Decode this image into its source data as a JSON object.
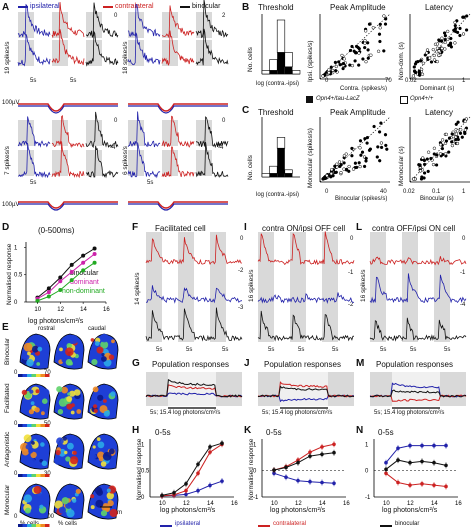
{
  "colors": {
    "ipsi": "#2222aa",
    "contra": "#cc2222",
    "binoc": "#111111",
    "green": "#22aa22",
    "magenta": "#cc22aa",
    "grey_band": "#d9d9d9"
  },
  "panelA": {
    "legend": {
      "ipsilateral": "ipsilateral",
      "contralateral": "contralateral",
      "binocular": "binocular"
    },
    "top_ylabel": "19 spikes/s",
    "top_ylabel2": "18 spikes/s",
    "bottom_ylabel": "7 spikes/s",
    "bottom_ylabel2": "6 spikes/s",
    "scale_v": "100µV",
    "scale_t": "5s",
    "numbers_top": [
      "0",
      "2"
    ],
    "numbers_bottom": [
      "0",
      "0",
      "-4",
      "-4"
    ]
  },
  "panelB": {
    "threshold_title": "Threshold",
    "threshold_xlabel": "log (contra.-ipsi)",
    "threshold_ylabel": "No. cells",
    "threshold_yticks": [
      "0",
      "5",
      "10",
      "15"
    ],
    "threshold_xticks": [
      "-2",
      "-1",
      "0",
      "1",
      "2"
    ],
    "peak_title": "Peak Amplitude",
    "peak_xlabel": "Contra. (spikes/s)",
    "peak_ylabel": "Ipsi. (spikes/s)",
    "peak_ticks": [
      "0",
      "70"
    ],
    "latency_title": "Latency",
    "latency_xlabel": "Dominant (s)",
    "latency_ylabel": "Non-dom. (s)",
    "latency_ticks": [
      "0.02",
      "1"
    ]
  },
  "legend_mid": {
    "left": "Opn4+/tau-LacZ",
    "right": "Opn4+/+"
  },
  "panelC": {
    "threshold_title": "Threshold",
    "threshold_xlabel": "log (contra.-ipsi)",
    "threshold_ylabel": "No. cells",
    "threshold_yticks": [
      "0",
      "5",
      "10"
    ],
    "threshold_xticks": [
      "-2",
      "-1",
      "0",
      "1",
      "2"
    ],
    "peak_title": "Peak Amplitude",
    "peak_xlabel": "Binocular (spikes/s)",
    "peak_ylabel": "Monocular (spikes/s)",
    "peak_ticks": [
      "0",
      "40"
    ],
    "latency_title": "Latency",
    "latency_xlabel": "Binocular (s)",
    "latency_ylabel": "Monocular (s)",
    "latency_ticks": [
      "0.02",
      "0.1",
      "1"
    ]
  },
  "panelD": {
    "title": "(0-500ms)",
    "ylabel": "Normalised response",
    "xlabel": "log photons/cm²/s",
    "xticks": [
      "10",
      "12",
      "14",
      "16"
    ],
    "yticks": [
      "0",
      "0.5",
      "1"
    ],
    "legend": [
      "binocular",
      "dominant",
      "non-dominant"
    ]
  },
  "panelE": {
    "rows": [
      "Binocular",
      "Facilitated",
      "Antagonistic",
      "Monocular"
    ],
    "rostral": "rostral",
    "caudal": "caudal",
    "scale_max_70": "70",
    "scale_max_50": "50",
    "scale_max_30": "30",
    "scale_max_100": "100",
    "scale_zero": "0",
    "xlabel": "% cells",
    "scalebar": "200 µm"
  },
  "panelF": {
    "title": "Facilitated cell",
    "ylabel": "14 spikes/s",
    "nums": [
      "0",
      "-2",
      "-3"
    ],
    "time": "5s"
  },
  "panelI": {
    "title": "contra ON/ipsi OFF cell",
    "ylabel": "16 spikes/s",
    "nums": [
      "0",
      "-1",
      "-2"
    ],
    "time": "5s"
  },
  "panelL": {
    "title": "contra OFF/ipsi ON cell",
    "ylabel": "16 spikes/s",
    "nums": [
      "0",
      "-1",
      "-4"
    ],
    "time": "5s"
  },
  "panelG": {
    "title": "Population responses",
    "caption": "5s; 15.4 log photons/cm²/s"
  },
  "panelJ": {
    "title": "Population responses",
    "caption": "5s; 15.4 log photons/cm²/s"
  },
  "panelM": {
    "title": "Population responses",
    "caption": "5s; 15.4 log photons/cm²/s"
  },
  "panelH": {
    "title": "0-5s",
    "ylabel": "Normalised response",
    "xlabel": "log photons/cm²/s",
    "xticks": [
      "10",
      "12",
      "14",
      "16"
    ],
    "yticks": [
      "0",
      "0.5",
      "1"
    ]
  },
  "panelK": {
    "title": "0-5s",
    "ylabel": "Normalised response",
    "xlabel": "log photons/cm²/s",
    "xticks": [
      "10",
      "12",
      "14",
      "16"
    ],
    "yticks": [
      "-1",
      "0",
      "1"
    ]
  },
  "panelN": {
    "title": "0-5s",
    "xlabel": "log photons/cm²/s",
    "xticks": [
      "10",
      "12",
      "14",
      "16"
    ],
    "yticks": [
      "-1",
      "0",
      "1"
    ]
  },
  "bottom_legend": {
    "ipsi": "ipsilateral",
    "contra": "contralateral",
    "binoc": "binocular"
  },
  "chart_data": [
    {
      "type": "line",
      "title": "(0-500ms)",
      "xlabel": "log photons/cm²/s",
      "ylabel": "Normalised response",
      "x": [
        10,
        11,
        12,
        13,
        14,
        15
      ],
      "series": [
        {
          "name": "binocular",
          "values": [
            0.08,
            0.25,
            0.45,
            0.68,
            0.85,
            0.98
          ]
        },
        {
          "name": "dominant",
          "values": [
            0.06,
            0.18,
            0.38,
            0.55,
            0.72,
            0.88
          ]
        },
        {
          "name": "non-dominant",
          "values": [
            0.02,
            0.1,
            0.22,
            0.4,
            0.58,
            0.72
          ]
        }
      ],
      "ylim": [
        0,
        1.1
      ]
    },
    {
      "type": "line",
      "title": "0-5s",
      "xlabel": "log photons/cm²/s",
      "ylabel": "Normalised response",
      "x": [
        10,
        11,
        12,
        13,
        14,
        15
      ],
      "series": [
        {
          "name": "ipsilateral",
          "values": [
            0.02,
            0.03,
            0.05,
            0.12,
            0.22,
            0.3
          ]
        },
        {
          "name": "contralateral",
          "values": [
            0.02,
            0.04,
            0.12,
            0.45,
            0.85,
            1.0
          ]
        },
        {
          "name": "binocular",
          "values": [
            0.03,
            0.08,
            0.25,
            0.62,
            0.95,
            1.02
          ]
        }
      ],
      "ylim": [
        0,
        1.1
      ]
    },
    {
      "type": "line",
      "title": "0-5s",
      "xlabel": "log photons/cm²/s",
      "ylabel": "Normalised response",
      "x": [
        10,
        11,
        12,
        13,
        14,
        15
      ],
      "series": [
        {
          "name": "ipsilateral",
          "values": [
            -0.1,
            -0.25,
            -0.38,
            -0.42,
            -0.45,
            -0.48
          ]
        },
        {
          "name": "contralateral",
          "values": [
            0.02,
            0.15,
            0.4,
            0.7,
            0.9,
            1.0
          ]
        },
        {
          "name": "binocular",
          "values": [
            0.02,
            0.12,
            0.3,
            0.55,
            0.62,
            0.68
          ]
        }
      ],
      "ylim": [
        -1,
        1.2
      ]
    },
    {
      "type": "line",
      "title": "0-5s",
      "xlabel": "log photons/cm²/s",
      "x": [
        10,
        11,
        12,
        13,
        14,
        15
      ],
      "series": [
        {
          "name": "ipsilateral",
          "values": [
            0.3,
            0.85,
            0.95,
            0.95,
            0.95,
            0.95
          ]
        },
        {
          "name": "contralateral",
          "values": [
            -0.1,
            -0.45,
            -0.55,
            -0.5,
            -0.55,
            -0.6
          ]
        },
        {
          "name": "binocular",
          "values": [
            0.05,
            0.4,
            0.3,
            0.35,
            0.3,
            0.2
          ]
        }
      ],
      "ylim": [
        -1,
        1.2
      ]
    }
  ]
}
